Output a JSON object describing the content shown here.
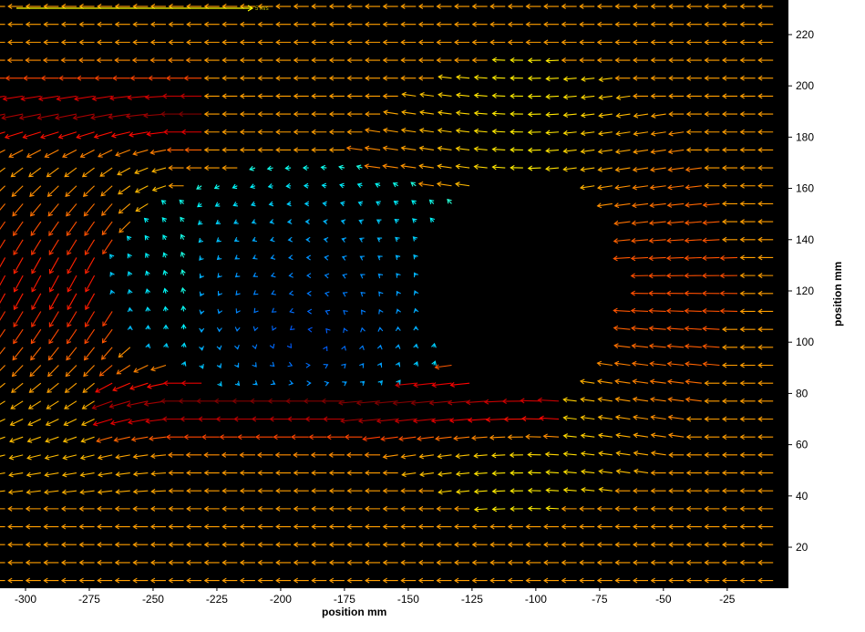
{
  "chart_data": {
    "type": "quiver",
    "title": "",
    "xlabel": "position mm",
    "ylabel": "position mm",
    "xlim": [
      -310,
      -1
    ],
    "ylim": [
      4,
      233.5
    ],
    "xticks": [
      -300,
      -275,
      -250,
      -225,
      -200,
      -175,
      -150,
      -125,
      -100,
      -75,
      -50,
      -25
    ],
    "yticks": [
      20,
      40,
      60,
      80,
      100,
      120,
      140,
      160,
      180,
      200,
      220
    ],
    "grid": false,
    "background": "#000000",
    "colormap": "jet",
    "grid_spacing_mm": 7,
    "free_stream": {
      "u": -1.0,
      "v": 0.0
    },
    "masked_region": {
      "shape": "ellipse",
      "center": [
        -103,
        122
      ],
      "radius_x": 39,
      "radius_y": 42
    },
    "wake_region": {
      "center": [
        -190,
        124
      ],
      "radius_x": 78,
      "radius_y": 46
    },
    "shear_layers": [
      {
        "y": 190,
        "x_range": [
          -310,
          -230
        ],
        "peak_speed": 1.45
      },
      {
        "y": 76,
        "x_range": [
          -250,
          -85
        ],
        "peak_speed": 1.45
      }
    ],
    "reference_vector": {
      "label": "5 m/s",
      "color": "#ffff00"
    }
  }
}
